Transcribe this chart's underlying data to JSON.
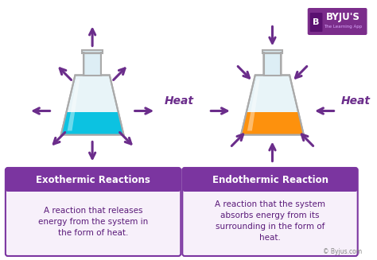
{
  "background_color": "#ffffff",
  "purple": "#6B2D8B",
  "arrow_color": "#6B2D8B",
  "box_header_color": "#7B35A0",
  "box_header_border": "#7B35A0",
  "box_body_color": "#f7f0fa",
  "box_body_border": "#9B55C0",
  "cyan_liquid": "#00C0E0",
  "orange_liquid": "#FF8C00",
  "exo_title": "Exothermic Reactions",
  "endo_title": "Endothermic Reaction",
  "exo_body": "A reaction that releases\nenergy from the system in\nthe form of heat.",
  "endo_body": "A reaction that the system\nabsorbs energy from its\nsurrounding in the form of\nheat.",
  "heat_label": "Heat",
  "byju_text": "© Byjus.com",
  "flask_glass_color": "#e8f4f8",
  "flask_glass_edge": "#aaaaaa",
  "flask_neck_color": "#d0e8f0",
  "title_fontsize": 8.5,
  "body_fontsize": 7.5,
  "heat_fontsize": 10
}
